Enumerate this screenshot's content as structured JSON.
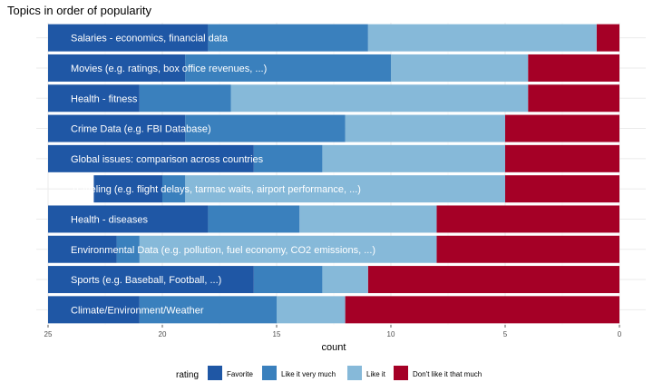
{
  "chart_data": {
    "type": "bar",
    "orientation": "horizontal",
    "stacked": true,
    "title": "Topics in order of popularity",
    "xlabel": "count",
    "ylabel": "",
    "x_reversed": true,
    "xlim": [
      25,
      0
    ],
    "x_ticks": [
      25,
      20,
      15,
      10,
      5,
      0
    ],
    "grid": true,
    "legend_title": "rating",
    "legend_position": "bottom",
    "categories": [
      "Salaries - economics, financial data",
      "Movies (e.g. ratings, box office revenues, ...)",
      "Health - fitness",
      "Crime Data (e.g. FBI Database)",
      "Global issues: comparison across countries",
      "Traveling (e.g. flight delays, tarmac waits, airport performance, ...)",
      "Health - diseases",
      "Environmental Data (e.g. pollution, fuel economy, CO2 emissions, ...)",
      "Sports (e.g. Baseball, Football, ...)",
      "Climate/Environment/Weather"
    ],
    "series": [
      {
        "name": "Favorite",
        "color": "#1f57a5",
        "values": [
          7,
          6,
          4,
          6,
          9,
          3,
          7,
          3,
          9,
          4
        ]
      },
      {
        "name": "Like it very much",
        "color": "#3a80bd",
        "values": [
          7,
          9,
          4,
          7,
          3,
          1,
          4,
          1,
          3,
          6
        ]
      },
      {
        "name": "Like it",
        "color": "#86b9d9",
        "values": [
          10,
          6,
          13,
          7,
          8,
          14,
          6,
          13,
          2,
          3
        ]
      },
      {
        "name": "Don't like it that much",
        "color": "#a50026",
        "values": [
          1,
          4,
          4,
          5,
          5,
          5,
          8,
          8,
          11,
          12
        ]
      }
    ]
  }
}
